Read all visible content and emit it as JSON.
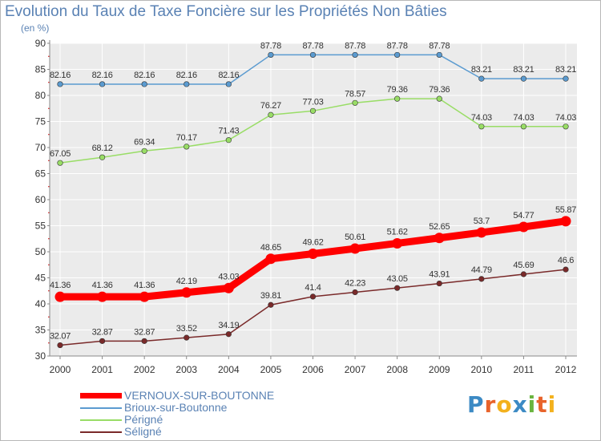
{
  "title": "Evolution du Taux de Taxe Foncière sur les Propriétés Non Bâties",
  "unit_label": "(en %)",
  "logo_text": "Proxiti",
  "colors": {
    "background_plot": "#ebebeb",
    "grid": "#ffffff",
    "axis": "#888888",
    "text": "#5a82b4",
    "tick_mark": "#cc0000"
  },
  "chart_data": {
    "type": "line",
    "title": "Evolution du Taux de Taxe Foncière sur les Propriétés Non Bâties",
    "ylabel": "(en %)",
    "xlabel": "",
    "x": [
      "2000",
      "2001",
      "2002",
      "2003",
      "2004",
      "2005",
      "2006",
      "2007",
      "2008",
      "2009",
      "2010",
      "2011",
      "2012"
    ],
    "ylim": [
      30,
      90
    ],
    "yticks": [
      30,
      35,
      40,
      45,
      50,
      55,
      60,
      65,
      70,
      75,
      80,
      85,
      90
    ],
    "grid": true,
    "legend_position": "bottom-left",
    "series": [
      {
        "name": "VERNOUX-SUR-BOUTONNE",
        "color": "#ff0000",
        "values": [
          41.36,
          41.36,
          41.36,
          42.19,
          43.03,
          48.65,
          49.62,
          50.61,
          51.62,
          52.65,
          53.7,
          54.77,
          55.87
        ],
        "labels": [
          "41.36",
          "41.36",
          "41.36",
          "42.19",
          "43.03",
          "48.65",
          "49.62",
          "50.61",
          "51.62",
          "52.65",
          "53.7",
          "54.77",
          "55.87"
        ]
      },
      {
        "name": "Brioux-sur-Boutonne",
        "color": "#5b9bd0",
        "values": [
          82.16,
          82.16,
          82.16,
          82.16,
          82.16,
          87.78,
          87.78,
          87.78,
          87.78,
          87.78,
          83.21,
          83.21,
          83.21
        ],
        "labels": [
          "82.16",
          "82.16",
          "82.16",
          "82.16",
          "82.16",
          "87.78",
          "87.78",
          "87.78",
          "87.78",
          "87.78",
          "83.21",
          "83.21",
          "83.21"
        ]
      },
      {
        "name": "Périgné",
        "color": "#99dd66",
        "values": [
          67.05,
          68.12,
          69.34,
          70.17,
          71.43,
          76.27,
          77.03,
          78.57,
          79.36,
          79.36,
          74.03,
          74.03,
          74.03
        ],
        "labels": [
          "67.05",
          "68.12",
          "69.34",
          "70.17",
          "71.43",
          "76.27",
          "77.03",
          "78.57",
          "79.36",
          "79.36",
          "74.03",
          "74.03",
          "74.03"
        ]
      },
      {
        "name": "Séligné",
        "color": "#7a2a2a",
        "values": [
          32.07,
          32.87,
          32.87,
          33.52,
          34.19,
          39.81,
          41.4,
          42.23,
          43.05,
          43.91,
          44.79,
          45.69,
          46.6
        ],
        "labels": [
          "32.07",
          "32.87",
          "32.87",
          "33.52",
          "34.19",
          "39.81",
          "41.4",
          "42.23",
          "43.05",
          "43.91",
          "44.79",
          "45.69",
          "46.6"
        ]
      }
    ]
  }
}
